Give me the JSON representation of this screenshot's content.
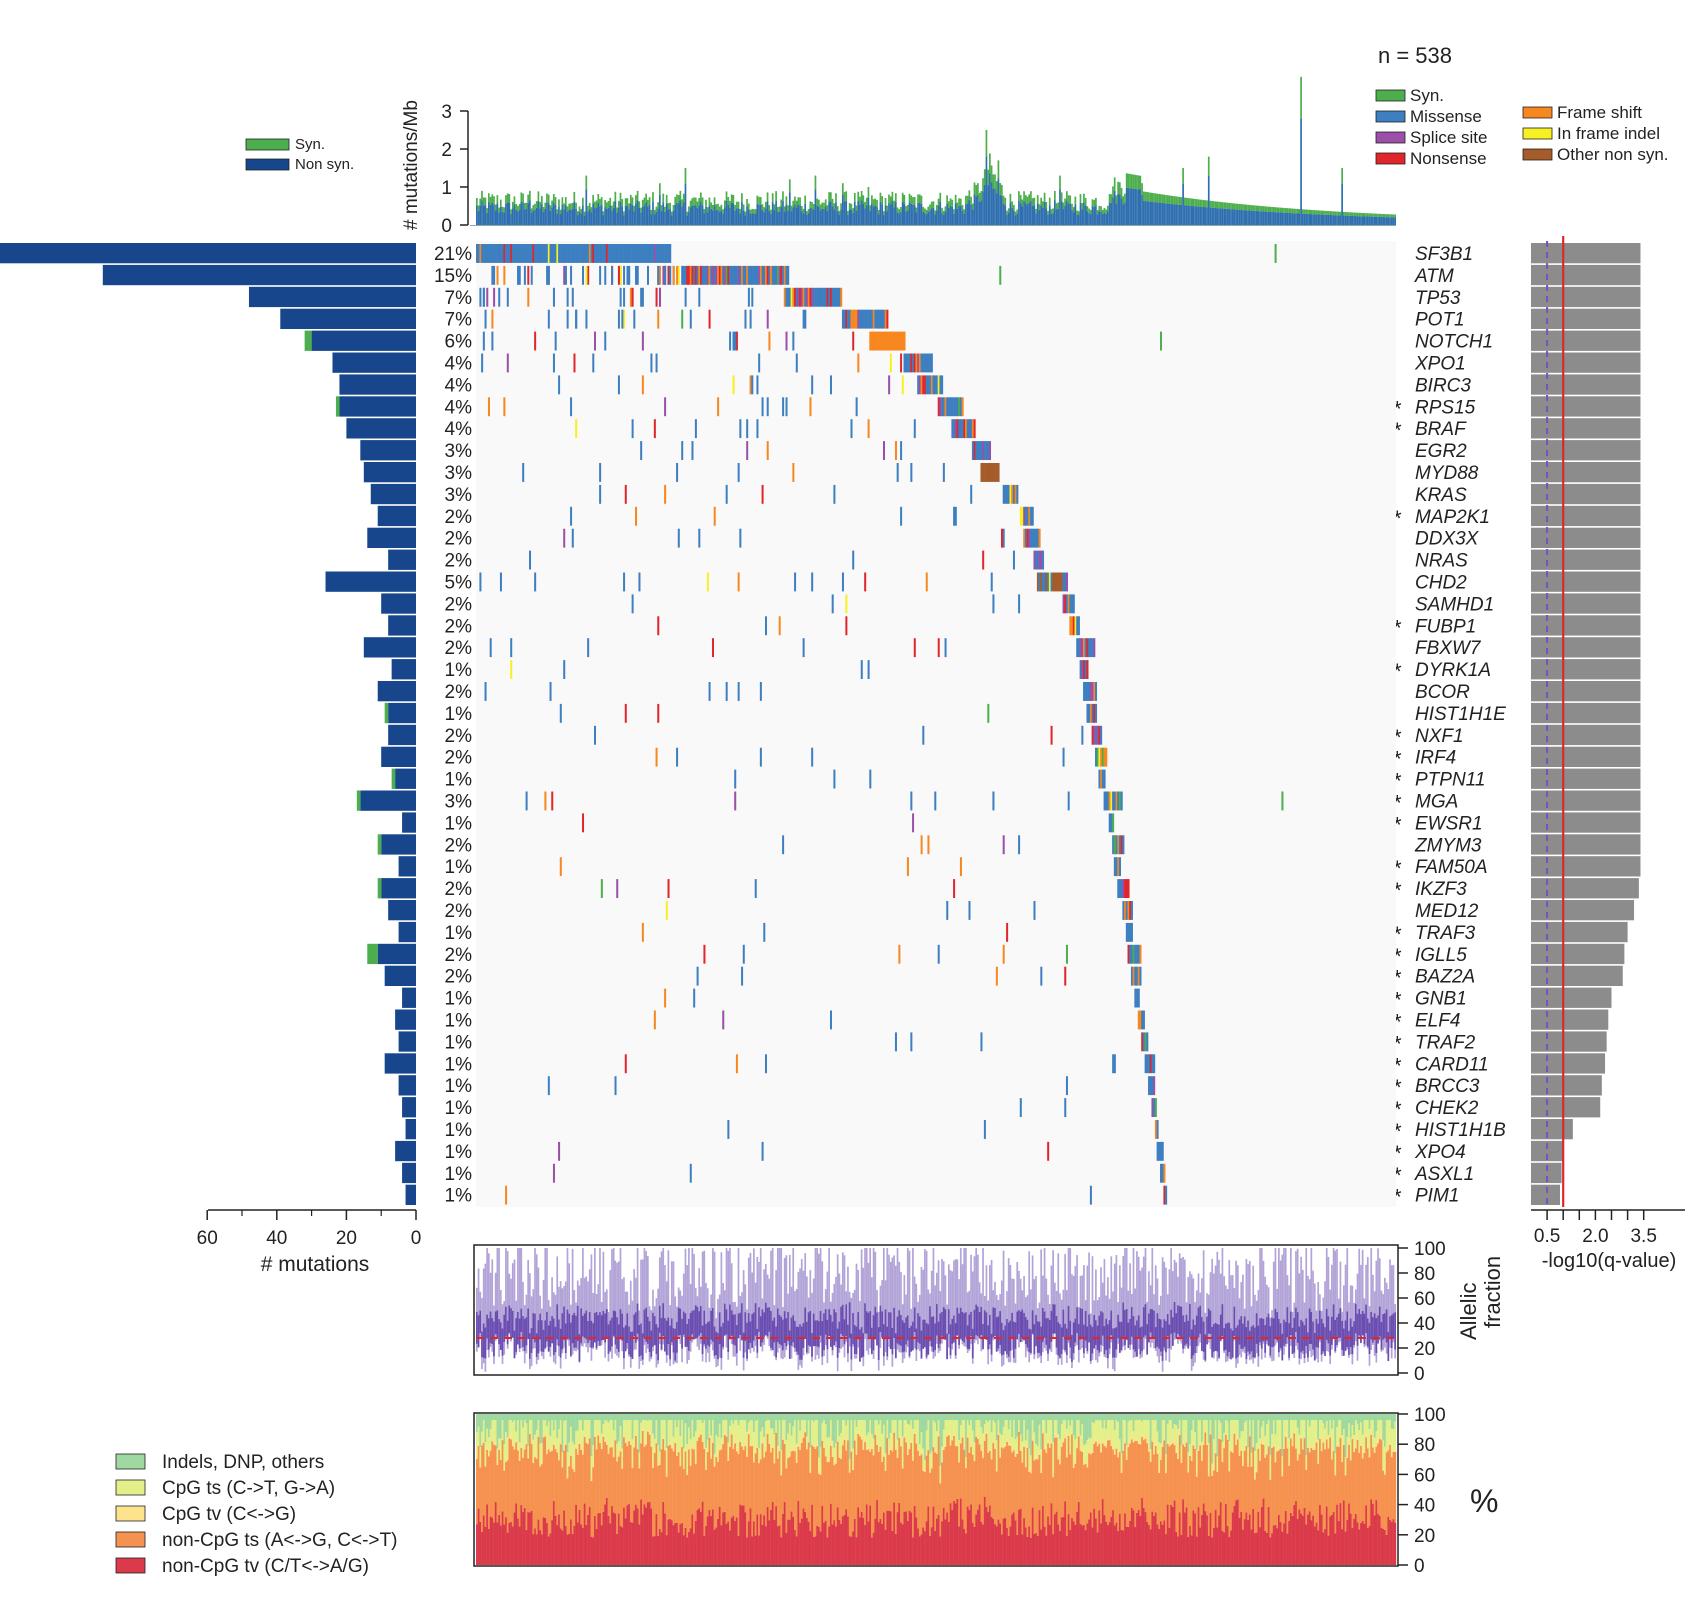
{
  "header": {
    "n_label": "n = 538"
  },
  "legends": {
    "top_left": [
      {
        "label": "Syn.",
        "color": "#4cae4c"
      },
      {
        "label": "Non syn.",
        "color": "#17468c"
      }
    ],
    "top_right_col1": [
      {
        "label": "Syn.",
        "color": "#4cae4c"
      },
      {
        "label": "Missense",
        "color": "#3d7fc0"
      },
      {
        "label": "Splice site",
        "color": "#9b4fa8"
      },
      {
        "label": "Nonsense",
        "color": "#e0262b"
      }
    ],
    "top_right_col2": [
      {
        "label": "Frame shift",
        "color": "#f7871f"
      },
      {
        "label": "In frame indel",
        "color": "#f7f022"
      },
      {
        "label": "Other non syn.",
        "color": "#a65b2a"
      }
    ],
    "spectrum": [
      {
        "label": "Indels, DNP, others",
        "color": "#9fd8a0"
      },
      {
        "label": "CpG ts (C->T, G->A)",
        "color": "#e3f08a"
      },
      {
        "label": "CpG tv (C<->G)",
        "color": "#fde38c"
      },
      {
        "label": "non-CpG ts (A<->G, C<->T)",
        "color": "#f6924f"
      },
      {
        "label": "non-CpG tv (C/T<->A/G)",
        "color": "#db3a4a"
      }
    ]
  },
  "chart_data": [
    {
      "type": "bar",
      "panel": "mutation-rate",
      "ylabel": "# mutations/Mb",
      "ylim": [
        0,
        3.5
      ],
      "yticks": [
        "0",
        "1",
        "2",
        "3"
      ],
      "n_samples": 538,
      "series": [
        {
          "name": "Non syn.",
          "approx_max": 2.0
        },
        {
          "name": "Syn.",
          "approx_max": 3.9
        }
      ]
    },
    {
      "type": "bar",
      "panel": "gene-mutation-counts",
      "orientation": "horizontal",
      "xlabel": "# mutations",
      "xticks": [
        "60",
        "40",
        "20",
        "0"
      ],
      "xlim": [
        60,
        0
      ],
      "genes": [
        {
          "gene": "SF3B1",
          "pct": "21%",
          "nonsyn": 120,
          "syn": 0,
          "star": false,
          "neglog10q": 3.4
        },
        {
          "gene": "ATM",
          "pct": "15%",
          "nonsyn": 90,
          "syn": 0,
          "star": false,
          "neglog10q": 3.4
        },
        {
          "gene": "TP53",
          "pct": "7%",
          "nonsyn": 48,
          "syn": 0,
          "star": false,
          "neglog10q": 3.4
        },
        {
          "gene": "POT1",
          "pct": "7%",
          "nonsyn": 39,
          "syn": 0,
          "star": false,
          "neglog10q": 3.4
        },
        {
          "gene": "NOTCH1",
          "pct": "6%",
          "nonsyn": 30,
          "syn": 2,
          "star": false,
          "neglog10q": 3.4
        },
        {
          "gene": "XPO1",
          "pct": "4%",
          "nonsyn": 24,
          "syn": 0,
          "star": false,
          "neglog10q": 3.4
        },
        {
          "gene": "BIRC3",
          "pct": "4%",
          "nonsyn": 22,
          "syn": 0,
          "star": false,
          "neglog10q": 3.4
        },
        {
          "gene": "RPS15",
          "pct": "4%",
          "nonsyn": 22,
          "syn": 1,
          "star": true,
          "neglog10q": 3.4
        },
        {
          "gene": "BRAF",
          "pct": "4%",
          "nonsyn": 20,
          "syn": 0,
          "star": true,
          "neglog10q": 3.4
        },
        {
          "gene": "EGR2",
          "pct": "3%",
          "nonsyn": 16,
          "syn": 0,
          "star": false,
          "neglog10q": 3.4
        },
        {
          "gene": "MYD88",
          "pct": "3%",
          "nonsyn": 15,
          "syn": 0,
          "star": false,
          "neglog10q": 3.4
        },
        {
          "gene": "KRAS",
          "pct": "3%",
          "nonsyn": 13,
          "syn": 0,
          "star": false,
          "neglog10q": 3.4
        },
        {
          "gene": "MAP2K1",
          "pct": "2%",
          "nonsyn": 11,
          "syn": 0,
          "star": true,
          "neglog10q": 3.4
        },
        {
          "gene": "DDX3X",
          "pct": "2%",
          "nonsyn": 14,
          "syn": 0,
          "star": false,
          "neglog10q": 3.4
        },
        {
          "gene": "NRAS",
          "pct": "2%",
          "nonsyn": 8,
          "syn": 0,
          "star": false,
          "neglog10q": 3.4
        },
        {
          "gene": "CHD2",
          "pct": "5%",
          "nonsyn": 26,
          "syn": 0,
          "star": false,
          "neglog10q": 3.4
        },
        {
          "gene": "SAMHD1",
          "pct": "2%",
          "nonsyn": 10,
          "syn": 0,
          "star": false,
          "neglog10q": 3.4
        },
        {
          "gene": "FUBP1",
          "pct": "2%",
          "nonsyn": 8,
          "syn": 0,
          "star": true,
          "neglog10q": 3.4
        },
        {
          "gene": "FBXW7",
          "pct": "2%",
          "nonsyn": 15,
          "syn": 0,
          "star": false,
          "neglog10q": 3.4
        },
        {
          "gene": "DYRK1A",
          "pct": "1%",
          "nonsyn": 7,
          "syn": 0,
          "star": true,
          "neglog10q": 3.4
        },
        {
          "gene": "BCOR",
          "pct": "2%",
          "nonsyn": 11,
          "syn": 0,
          "star": false,
          "neglog10q": 3.4
        },
        {
          "gene": "HIST1H1E",
          "pct": "1%",
          "nonsyn": 8,
          "syn": 1,
          "star": false,
          "neglog10q": 3.4
        },
        {
          "gene": "NXF1",
          "pct": "2%",
          "nonsyn": 8,
          "syn": 0,
          "star": true,
          "neglog10q": 3.4
        },
        {
          "gene": "IRF4",
          "pct": "2%",
          "nonsyn": 10,
          "syn": 0,
          "star": true,
          "neglog10q": 3.4
        },
        {
          "gene": "PTPN11",
          "pct": "1%",
          "nonsyn": 6,
          "syn": 1,
          "star": true,
          "neglog10q": 3.4
        },
        {
          "gene": "MGA",
          "pct": "3%",
          "nonsyn": 16,
          "syn": 1,
          "star": true,
          "neglog10q": 3.4
        },
        {
          "gene": "EWSR1",
          "pct": "1%",
          "nonsyn": 4,
          "syn": 0,
          "star": true,
          "neglog10q": 3.4
        },
        {
          "gene": "ZMYM3",
          "pct": "2%",
          "nonsyn": 10,
          "syn": 1,
          "star": false,
          "neglog10q": 3.4
        },
        {
          "gene": "FAM50A",
          "pct": "1%",
          "nonsyn": 5,
          "syn": 0,
          "star": true,
          "neglog10q": 3.4
        },
        {
          "gene": "IKZF3",
          "pct": "2%",
          "nonsyn": 10,
          "syn": 1,
          "star": true,
          "neglog10q": 3.35
        },
        {
          "gene": "MED12",
          "pct": "2%",
          "nonsyn": 8,
          "syn": 0,
          "star": false,
          "neglog10q": 3.2
        },
        {
          "gene": "TRAF3",
          "pct": "1%",
          "nonsyn": 5,
          "syn": 0,
          "star": true,
          "neglog10q": 3.0
        },
        {
          "gene": "IGLL5",
          "pct": "2%",
          "nonsyn": 11,
          "syn": 3,
          "star": true,
          "neglog10q": 2.9
        },
        {
          "gene": "BAZ2A",
          "pct": "2%",
          "nonsyn": 9,
          "syn": 0,
          "star": true,
          "neglog10q": 2.85
        },
        {
          "gene": "GNB1",
          "pct": "1%",
          "nonsyn": 4,
          "syn": 0,
          "star": true,
          "neglog10q": 2.5
        },
        {
          "gene": "ELF4",
          "pct": "1%",
          "nonsyn": 6,
          "syn": 0,
          "star": true,
          "neglog10q": 2.4
        },
        {
          "gene": "TRAF2",
          "pct": "1%",
          "nonsyn": 5,
          "syn": 0,
          "star": true,
          "neglog10q": 2.35
        },
        {
          "gene": "CARD11",
          "pct": "1%",
          "nonsyn": 9,
          "syn": 0,
          "star": true,
          "neglog10q": 2.3
        },
        {
          "gene": "BRCC3",
          "pct": "1%",
          "nonsyn": 5,
          "syn": 0,
          "star": true,
          "neglog10q": 2.2
        },
        {
          "gene": "CHEK2",
          "pct": "1%",
          "nonsyn": 4,
          "syn": 0,
          "star": true,
          "neglog10q": 2.15
        },
        {
          "gene": "HIST1H1B",
          "pct": "1%",
          "nonsyn": 3,
          "syn": 0,
          "star": true,
          "neglog10q": 1.3
        },
        {
          "gene": "XPO4",
          "pct": "1%",
          "nonsyn": 6,
          "syn": 0,
          "star": true,
          "neglog10q": 1.0
        },
        {
          "gene": "ASXL1",
          "pct": "1%",
          "nonsyn": 4,
          "syn": 0,
          "star": true,
          "neglog10q": 0.95
        },
        {
          "gene": "PIM1",
          "pct": "1%",
          "nonsyn": 3,
          "syn": 0,
          "star": true,
          "neglog10q": 0.9
        }
      ],
      "star_symbol": "*"
    },
    {
      "type": "heatmap",
      "panel": "mutation-matrix",
      "rows": "genes (same order as gene-mutation-counts)",
      "columns": 538,
      "categories": [
        "Syn.",
        "Missense",
        "Splice site",
        "Nonsense",
        "Frame shift",
        "In frame indel",
        "Other non syn."
      ]
    },
    {
      "type": "bar",
      "panel": "q-value",
      "orientation": "horizontal",
      "xlabel": "-log10(q-value)",
      "xticks": [
        "0.5",
        "2.0",
        "3.5"
      ],
      "xlim": [
        0,
        3.7
      ],
      "thresholds": [
        {
          "value": 0.5,
          "style": "dashed",
          "color": "#7a4fc0"
        },
        {
          "value": 1.0,
          "style": "solid",
          "color": "#e0262b"
        }
      ]
    },
    {
      "type": "bar",
      "panel": "allelic-fraction",
      "ylabel": "Allelic fraction",
      "ylim": [
        0,
        100
      ],
      "yticks": [
        "0",
        "20",
        "40",
        "60",
        "80",
        "100"
      ],
      "median_line": 28,
      "n_samples": 538
    },
    {
      "type": "area",
      "panel": "mutation-spectrum",
      "ylabel": "%",
      "ylim": [
        0,
        100
      ],
      "yticks": [
        "0",
        "20",
        "40",
        "60",
        "80",
        "100"
      ],
      "approx_mean_fractions": {
        "non-CpG tv (C/T<->A/G)": 30,
        "non-CpG ts (A<->G, C<->T)": 47,
        "CpG tv (C<->G)": 2,
        "CpG ts (C->T, G->A)": 14,
        "Indels, DNP, others": 7
      }
    }
  ]
}
